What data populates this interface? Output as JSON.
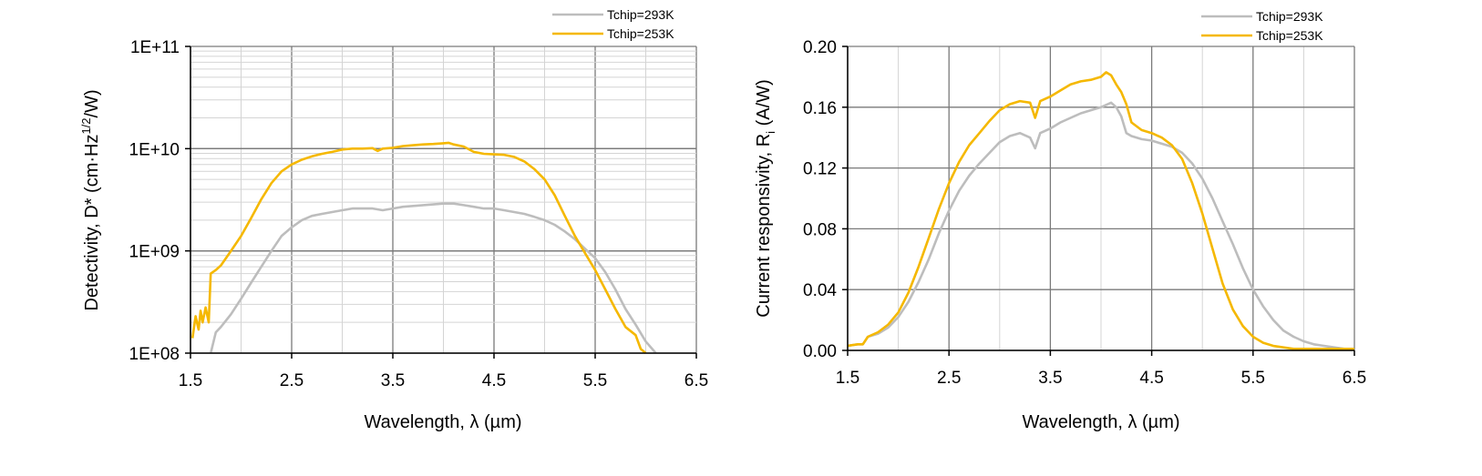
{
  "colors": {
    "tchip_293": "#bdbdbd",
    "tchip_253": "#f5b800",
    "major_grid": "#7a7a7a",
    "minor_grid": "#d4d4d4",
    "axis": "#000000"
  },
  "chart_data": [
    {
      "type": "line",
      "xlabel": "Wavelength, λ (µm)",
      "ylabel": "Detectivity, D* (cm·Hz^1/2/W)",
      "ylabel_parts": {
        "main": "Detectivity, D* (cm·Hz",
        "sup": "1/2",
        "tail": "/W)"
      },
      "xlim": [
        1.5,
        6.5
      ],
      "ylim": [
        100000000,
        100000000000
      ],
      "yscale": "log",
      "grid": true,
      "legend_position": "top-right",
      "x_ticks": [
        "1.5",
        "2.5",
        "3.5",
        "4.5",
        "5.5",
        "6.5"
      ],
      "y_ticks": [
        "1E+08",
        "1E+09",
        "1E+10",
        "1E+11"
      ],
      "series": [
        {
          "name": "Tchip=293K",
          "color_key": "tchip_293",
          "x": [
            1.7,
            1.75,
            1.8,
            1.9,
            2.0,
            2.1,
            2.2,
            2.3,
            2.4,
            2.5,
            2.6,
            2.7,
            2.8,
            2.9,
            3.0,
            3.1,
            3.2,
            3.3,
            3.4,
            3.5,
            3.6,
            3.7,
            3.8,
            3.9,
            4.0,
            4.1,
            4.2,
            4.3,
            4.4,
            4.5,
            4.6,
            4.7,
            4.8,
            4.9,
            5.0,
            5.1,
            5.2,
            5.3,
            5.4,
            5.5,
            5.6,
            5.7,
            5.8,
            5.9,
            6.0,
            6.1
          ],
          "y": [
            100000000,
            160000000,
            180000000,
            240000000,
            340000000,
            490000000,
            700000000,
            1000000000,
            1400000000,
            1700000000,
            2000000000,
            2200000000,
            2300000000,
            2400000000,
            2500000000,
            2600000000,
            2600000000,
            2600000000,
            2500000000,
            2600000000,
            2700000000,
            2750000000,
            2800000000,
            2850000000,
            2900000000,
            2900000000,
            2800000000,
            2700000000,
            2600000000,
            2600000000,
            2500000000,
            2400000000,
            2300000000,
            2150000000,
            2000000000,
            1800000000,
            1550000000,
            1300000000,
            1050000000,
            850000000,
            620000000,
            420000000,
            270000000,
            190000000,
            130000000,
            100000000
          ]
        },
        {
          "name": "Tchip=253K",
          "color_key": "tchip_253",
          "x": [
            1.52,
            1.55,
            1.58,
            1.6,
            1.62,
            1.65,
            1.68,
            1.7,
            1.75,
            1.8,
            1.9,
            2.0,
            2.1,
            2.2,
            2.3,
            2.4,
            2.5,
            2.6,
            2.7,
            2.8,
            2.9,
            3.0,
            3.1,
            3.2,
            3.3,
            3.35,
            3.4,
            3.5,
            3.6,
            3.7,
            3.8,
            3.9,
            4.0,
            4.05,
            4.1,
            4.2,
            4.3,
            4.4,
            4.5,
            4.6,
            4.7,
            4.8,
            4.9,
            5.0,
            5.1,
            5.2,
            5.3,
            5.4,
            5.5,
            5.6,
            5.7,
            5.8,
            5.9,
            5.95,
            6.0
          ],
          "y": [
            140000000,
            230000000,
            170000000,
            260000000,
            200000000,
            280000000,
            200000000,
            600000000,
            650000000,
            720000000,
            1000000000,
            1400000000,
            2100000000,
            3200000000,
            4600000000,
            6000000000,
            7000000000,
            7800000000,
            8400000000,
            8900000000,
            9300000000,
            9800000000,
            10000000000,
            10000000000,
            10100000000,
            9500000000,
            10000000000,
            10200000000,
            10600000000,
            10800000000,
            11000000000,
            11100000000,
            11300000000,
            11400000000,
            11000000000,
            10500000000,
            9300000000,
            8900000000,
            8800000000,
            8700000000,
            8300000000,
            7500000000,
            6300000000,
            5000000000,
            3500000000,
            2200000000,
            1400000000,
            950000000,
            650000000,
            420000000,
            270000000,
            180000000,
            150000000,
            110000000,
            100000000
          ]
        }
      ]
    },
    {
      "type": "line",
      "xlabel": "Wavelength, λ (µm)",
      "ylabel": "Current responsivity, R_i (A/W)",
      "ylabel_parts": {
        "main": "Current responsivity, R",
        "sub": "i",
        "tail": " (A/W)"
      },
      "xlim": [
        1.5,
        6.5
      ],
      "ylim": [
        0,
        0.2
      ],
      "grid": true,
      "legend_position": "top-right",
      "x_ticks": [
        "1.5",
        "2.5",
        "3.5",
        "4.5",
        "5.5",
        "6.5"
      ],
      "y_ticks": [
        "0.00",
        "0.04",
        "0.08",
        "0.12",
        "0.16",
        "0.20"
      ],
      "series": [
        {
          "name": "Tchip=293K",
          "color_key": "tchip_293",
          "x": [
            1.5,
            1.6,
            1.65,
            1.7,
            1.8,
            1.9,
            2.0,
            2.1,
            2.2,
            2.3,
            2.4,
            2.5,
            2.6,
            2.7,
            2.8,
            2.9,
            3.0,
            3.1,
            3.2,
            3.3,
            3.35,
            3.4,
            3.5,
            3.6,
            3.7,
            3.8,
            3.9,
            4.0,
            4.1,
            4.15,
            4.2,
            4.25,
            4.3,
            4.4,
            4.5,
            4.6,
            4.7,
            4.8,
            4.9,
            5.0,
            5.1,
            5.2,
            5.3,
            5.4,
            5.5,
            5.6,
            5.7,
            5.8,
            5.9,
            6.0,
            6.1,
            6.2,
            6.3,
            6.4,
            6.5
          ],
          "y": [
            0.003,
            0.004,
            0.004,
            0.009,
            0.011,
            0.015,
            0.022,
            0.032,
            0.045,
            0.06,
            0.077,
            0.092,
            0.105,
            0.115,
            0.123,
            0.13,
            0.137,
            0.141,
            0.143,
            0.14,
            0.133,
            0.143,
            0.146,
            0.15,
            0.153,
            0.156,
            0.158,
            0.16,
            0.163,
            0.16,
            0.154,
            0.143,
            0.141,
            0.139,
            0.138,
            0.136,
            0.134,
            0.13,
            0.123,
            0.113,
            0.1,
            0.085,
            0.07,
            0.054,
            0.04,
            0.029,
            0.02,
            0.013,
            0.009,
            0.006,
            0.004,
            0.003,
            0.002,
            0.001,
            0.001
          ]
        },
        {
          "name": "Tchip=253K",
          "color_key": "tchip_253",
          "x": [
            1.5,
            1.6,
            1.65,
            1.7,
            1.8,
            1.9,
            2.0,
            2.1,
            2.2,
            2.3,
            2.4,
            2.5,
            2.6,
            2.7,
            2.8,
            2.9,
            3.0,
            3.1,
            3.2,
            3.3,
            3.35,
            3.4,
            3.5,
            3.6,
            3.7,
            3.8,
            3.9,
            4.0,
            4.05,
            4.1,
            4.15,
            4.2,
            4.25,
            4.3,
            4.4,
            4.5,
            4.6,
            4.7,
            4.8,
            4.9,
            5.0,
            5.1,
            5.2,
            5.3,
            5.4,
            5.5,
            5.6,
            5.7,
            5.8,
            5.9,
            6.0,
            6.1,
            6.2,
            6.3,
            6.4,
            6.5
          ],
          "y": [
            0.003,
            0.004,
            0.004,
            0.009,
            0.012,
            0.017,
            0.025,
            0.038,
            0.055,
            0.074,
            0.093,
            0.11,
            0.124,
            0.135,
            0.143,
            0.151,
            0.158,
            0.162,
            0.164,
            0.163,
            0.153,
            0.164,
            0.167,
            0.171,
            0.175,
            0.177,
            0.178,
            0.18,
            0.183,
            0.181,
            0.175,
            0.17,
            0.162,
            0.15,
            0.145,
            0.143,
            0.14,
            0.135,
            0.126,
            0.11,
            0.09,
            0.067,
            0.044,
            0.027,
            0.016,
            0.009,
            0.005,
            0.003,
            0.002,
            0.001,
            0.001,
            0.001,
            0.001,
            0.001,
            0.001,
            0.001
          ]
        }
      ]
    }
  ]
}
